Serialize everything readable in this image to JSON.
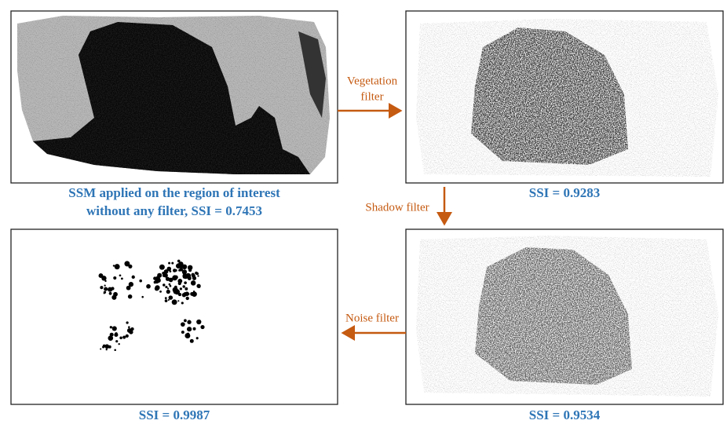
{
  "panels": [
    {
      "caption_lines": [
        "SSM applied on the region of interest",
        "without any filter, SSI = 0.7453"
      ]
    },
    {
      "caption_lines": [
        "SSI = 0.9283"
      ]
    },
    {
      "caption_lines": [
        "SSI = 0.9534"
      ]
    },
    {
      "caption_lines": [
        "SSI = 0.9987"
      ]
    }
  ],
  "arrows": [
    {
      "label_lines": [
        "Vegetation",
        "filter"
      ]
    },
    {
      "label_lines": [
        "Shadow filter"
      ]
    },
    {
      "label_lines": [
        "Noise filter"
      ]
    }
  ]
}
